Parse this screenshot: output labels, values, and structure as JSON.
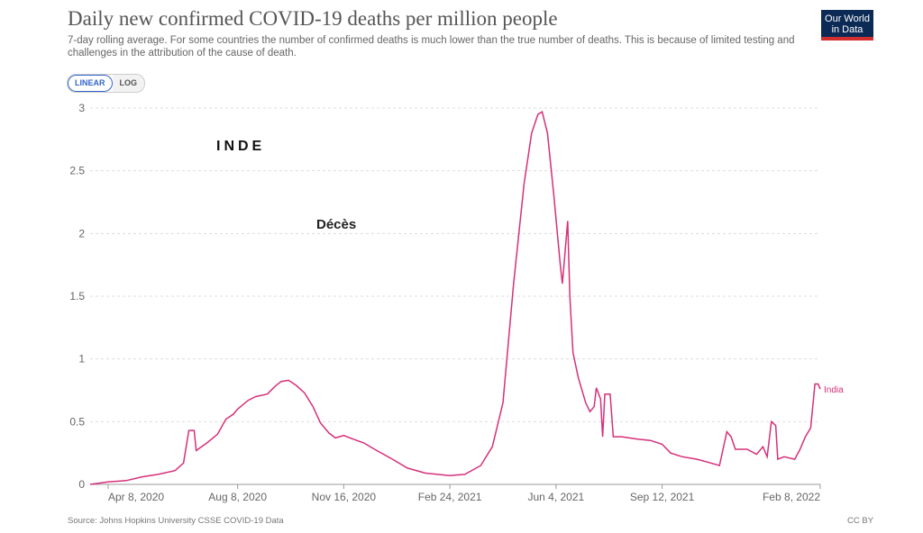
{
  "header": {
    "title": "Daily new confirmed COVID-19 deaths per million people",
    "subtitle": "7-day rolling average. For some countries the number of confirmed deaths is much lower than the true number of deaths. This is because of limited testing and challenges in the attribution of the cause of death.",
    "logo_line1": "Our World",
    "logo_line2": "in Data"
  },
  "controls": {
    "linear_label": "LINEAR",
    "log_label": "LOG",
    "selected": "LINEAR"
  },
  "annotations": {
    "country_title": "INDE",
    "measure": "Décès"
  },
  "footer": {
    "source": "Source: Johns Hopkins University CSSE COVID-19 Data",
    "license": "CC BY"
  },
  "colors": {
    "line": "#d6307a",
    "grid": "#dddddd",
    "axis": "#999999"
  },
  "chart_data": {
    "type": "line",
    "title": "Daily new confirmed COVID-19 deaths per million people",
    "xlabel": "",
    "ylabel": "",
    "xlim": [
      "2020-03-22",
      "2022-02-08"
    ],
    "ylim": [
      0,
      3
    ],
    "y_ticks": [
      0,
      0.5,
      1,
      1.5,
      2,
      2.5,
      3
    ],
    "x_ticks": [
      {
        "date": "2020-04-08",
        "label": "Apr 8, 2020"
      },
      {
        "date": "2020-08-08",
        "label": "Aug 8, 2020"
      },
      {
        "date": "2020-11-16",
        "label": "Nov 16, 2020"
      },
      {
        "date": "2021-02-24",
        "label": "Feb 24, 2021"
      },
      {
        "date": "2021-06-04",
        "label": "Jun 4, 2021"
      },
      {
        "date": "2021-09-12",
        "label": "Sep 12, 2021"
      },
      {
        "date": "2022-02-08",
        "label": "Feb 8, 2022"
      }
    ],
    "grid": "horizontal dashed",
    "series": [
      {
        "name": "India",
        "color": "#d6307a",
        "points": [
          [
            "2020-03-22",
            0.0
          ],
          [
            "2020-04-08",
            0.02
          ],
          [
            "2020-04-25",
            0.03
          ],
          [
            "2020-05-10",
            0.06
          ],
          [
            "2020-05-25",
            0.08
          ],
          [
            "2020-06-10",
            0.11
          ],
          [
            "2020-06-18",
            0.17
          ],
          [
            "2020-06-23",
            0.43
          ],
          [
            "2020-06-28",
            0.43
          ],
          [
            "2020-06-30",
            0.27
          ],
          [
            "2020-07-10",
            0.33
          ],
          [
            "2020-07-20",
            0.4
          ],
          [
            "2020-07-28",
            0.52
          ],
          [
            "2020-08-04",
            0.56
          ],
          [
            "2020-08-08",
            0.6
          ],
          [
            "2020-08-18",
            0.67
          ],
          [
            "2020-08-25",
            0.7
          ],
          [
            "2020-09-05",
            0.72
          ],
          [
            "2020-09-12",
            0.78
          ],
          [
            "2020-09-18",
            0.82
          ],
          [
            "2020-09-25",
            0.83
          ],
          [
            "2020-10-02",
            0.79
          ],
          [
            "2020-10-10",
            0.73
          ],
          [
            "2020-10-18",
            0.62
          ],
          [
            "2020-10-25",
            0.49
          ],
          [
            "2020-11-02",
            0.41
          ],
          [
            "2020-11-08",
            0.37
          ],
          [
            "2020-11-16",
            0.39
          ],
          [
            "2020-11-25",
            0.36
          ],
          [
            "2020-12-05",
            0.33
          ],
          [
            "2020-12-15",
            0.28
          ],
          [
            "2021-01-01",
            0.2
          ],
          [
            "2021-01-15",
            0.13
          ],
          [
            "2021-02-01",
            0.09
          ],
          [
            "2021-02-24",
            0.07
          ],
          [
            "2021-03-10",
            0.08
          ],
          [
            "2021-03-25",
            0.15
          ],
          [
            "2021-04-05",
            0.3
          ],
          [
            "2021-04-15",
            0.65
          ],
          [
            "2021-04-25",
            1.6
          ],
          [
            "2021-05-05",
            2.4
          ],
          [
            "2021-05-12",
            2.8
          ],
          [
            "2021-05-18",
            2.95
          ],
          [
            "2021-05-22",
            2.97
          ],
          [
            "2021-05-27",
            2.8
          ],
          [
            "2021-06-02",
            2.3
          ],
          [
            "2021-06-08",
            1.75
          ],
          [
            "2021-06-10",
            1.6
          ],
          [
            "2021-06-12",
            1.8
          ],
          [
            "2021-06-15",
            2.1
          ],
          [
            "2021-06-17",
            1.5
          ],
          [
            "2021-06-20",
            1.05
          ],
          [
            "2021-06-25",
            0.85
          ],
          [
            "2021-07-02",
            0.65
          ],
          [
            "2021-07-06",
            0.58
          ],
          [
            "2021-07-10",
            0.62
          ],
          [
            "2021-07-12",
            0.77
          ],
          [
            "2021-07-16",
            0.68
          ],
          [
            "2021-07-18",
            0.38
          ],
          [
            "2021-07-20",
            0.72
          ],
          [
            "2021-07-25",
            0.72
          ],
          [
            "2021-07-28",
            0.38
          ],
          [
            "2021-08-05",
            0.38
          ],
          [
            "2021-08-20",
            0.36
          ],
          [
            "2021-09-01",
            0.35
          ],
          [
            "2021-09-12",
            0.32
          ],
          [
            "2021-09-20",
            0.25
          ],
          [
            "2021-10-01",
            0.22
          ],
          [
            "2021-10-15",
            0.2
          ],
          [
            "2021-10-28",
            0.17
          ],
          [
            "2021-11-05",
            0.15
          ],
          [
            "2021-11-12",
            0.42
          ],
          [
            "2021-11-16",
            0.38
          ],
          [
            "2021-11-20",
            0.28
          ],
          [
            "2021-12-01",
            0.28
          ],
          [
            "2021-12-10",
            0.24
          ],
          [
            "2021-12-16",
            0.3
          ],
          [
            "2021-12-20",
            0.22
          ],
          [
            "2021-12-24",
            0.5
          ],
          [
            "2021-12-28",
            0.47
          ],
          [
            "2021-12-30",
            0.2
          ],
          [
            "2022-01-05",
            0.22
          ],
          [
            "2022-01-15",
            0.2
          ],
          [
            "2022-01-20",
            0.28
          ],
          [
            "2022-01-25",
            0.38
          ],
          [
            "2022-01-30",
            0.45
          ],
          [
            "2022-02-03",
            0.8
          ],
          [
            "2022-02-06",
            0.8
          ],
          [
            "2022-02-08",
            0.76
          ]
        ]
      }
    ]
  }
}
